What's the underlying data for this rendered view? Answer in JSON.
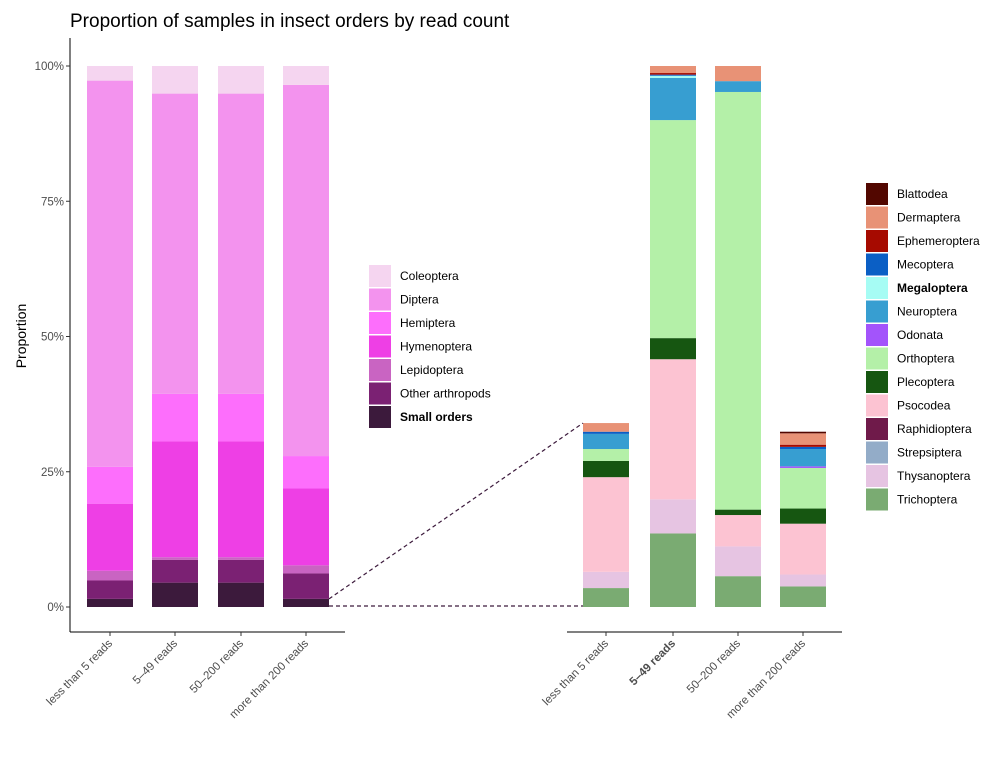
{
  "title": "Proportion of samples in insect orders by read count",
  "chart_data": [
    {
      "type": "bar",
      "stacked": true,
      "ylabel": "Proportion",
      "ylim": [
        0,
        1
      ],
      "yticks": [
        "0%",
        "25%",
        "50%",
        "75%",
        "100%"
      ],
      "categories": [
        "less than 5 reads",
        "5–49 reads",
        "50–200 reads",
        "more than 200 reads"
      ],
      "series": [
        {
          "name": "Small orders",
          "color": "#3c1a3c",
          "values": [
            0.015,
            0.045,
            0.045,
            0.015
          ]
        },
        {
          "name": "Other arthropods",
          "color": "#7b2173",
          "values": [
            0.034,
            0.042,
            0.042,
            0.047
          ]
        },
        {
          "name": "Lepidoptera",
          "color": "#c964c2",
          "values": [
            0.018,
            0.005,
            0.005,
            0.015
          ]
        },
        {
          "name": "Hymenoptera",
          "color": "#ee3fe5",
          "values": [
            0.124,
            0.214,
            0.214,
            0.142
          ]
        },
        {
          "name": "Hemiptera",
          "color": "#fd6efc",
          "values": [
            0.068,
            0.088,
            0.088,
            0.06
          ]
        },
        {
          "name": "Diptera",
          "color": "#f393ee",
          "values": [
            0.714,
            0.555,
            0.555,
            0.686
          ]
        },
        {
          "name": "Coleoptera",
          "color": "#f5d5f0",
          "values": [
            0.027,
            0.051,
            0.051,
            0.035
          ]
        }
      ],
      "legend": [
        "Coleoptera",
        "Diptera",
        "Hemiptera",
        "Hymenoptera",
        "Lepidoptera",
        "Other arthropods",
        "Small orders"
      ],
      "legend_bold": "Small orders"
    },
    {
      "type": "bar",
      "stacked": true,
      "ylim": [
        0,
        1
      ],
      "categories": [
        "less than 5 reads",
        "5–49 reads",
        "50–200 reads",
        "more than 200 reads"
      ],
      "category_bold": "5–49 reads",
      "series": [
        {
          "name": "Trichoptera",
          "color": "#7aab72",
          "values": [
            0.035,
            0.136,
            0.057,
            0.038
          ]
        },
        {
          "name": "Strepsiptera",
          "color": "#93acc8",
          "values": [
            0.0,
            0.0,
            0.0,
            0.0
          ]
        },
        {
          "name": "Thysanoptera",
          "color": "#e6c4e2",
          "values": [
            0.03,
            0.063,
            0.055,
            0.022
          ]
        },
        {
          "name": "Psocodea",
          "color": "#fcc3d2",
          "values": [
            0.175,
            0.259,
            0.058,
            0.094
          ]
        },
        {
          "name": "Plecoptera",
          "color": "#165611",
          "values": [
            0.03,
            0.039,
            0.01,
            0.028
          ]
        },
        {
          "name": "Orthoptera",
          "color": "#b4f0a8",
          "values": [
            0.022,
            0.403,
            0.772,
            0.075
          ]
        },
        {
          "name": "Odonata",
          "color": "#a354fb",
          "values": [
            0.0,
            0.0,
            0.0,
            0.003
          ]
        },
        {
          "name": "Neuroptera",
          "color": "#379ed1",
          "values": [
            0.028,
            0.078,
            0.02,
            0.032
          ]
        },
        {
          "name": "Megaloptera",
          "color": "#a6fcf4",
          "values": [
            0.0,
            0.004,
            0.0,
            0.0
          ]
        },
        {
          "name": "Mecoptera",
          "color": "#0b5fc5",
          "values": [
            0.004,
            0.002,
            0.0,
            0.004
          ]
        },
        {
          "name": "Ephemeroptera",
          "color": "#a60a00",
          "values": [
            0.0,
            0.003,
            0.0,
            0.004
          ]
        },
        {
          "name": "Dermaptera",
          "color": "#e89276",
          "values": [
            0.016,
            0.013,
            0.028,
            0.021
          ]
        },
        {
          "name": "Raphidioptera",
          "color": "#6f1a4a",
          "values": [
            0.0,
            0.0,
            0.0,
            0.0
          ]
        },
        {
          "name": "Blattodea",
          "color": "#520700",
          "values": [
            0.0,
            0.0,
            0.0,
            0.003
          ]
        }
      ],
      "legend": [
        "Blattodea",
        "Dermaptera",
        "Ephemeroptera",
        "Mecoptera",
        "Megaloptera",
        "Neuroptera",
        "Odonata",
        "Orthoptera",
        "Plecoptera",
        "Psocodea",
        "Raphidioptera",
        "Strepsiptera",
        "Thysanoptera",
        "Trichoptera"
      ],
      "legend_bold": "Megaloptera"
    }
  ]
}
